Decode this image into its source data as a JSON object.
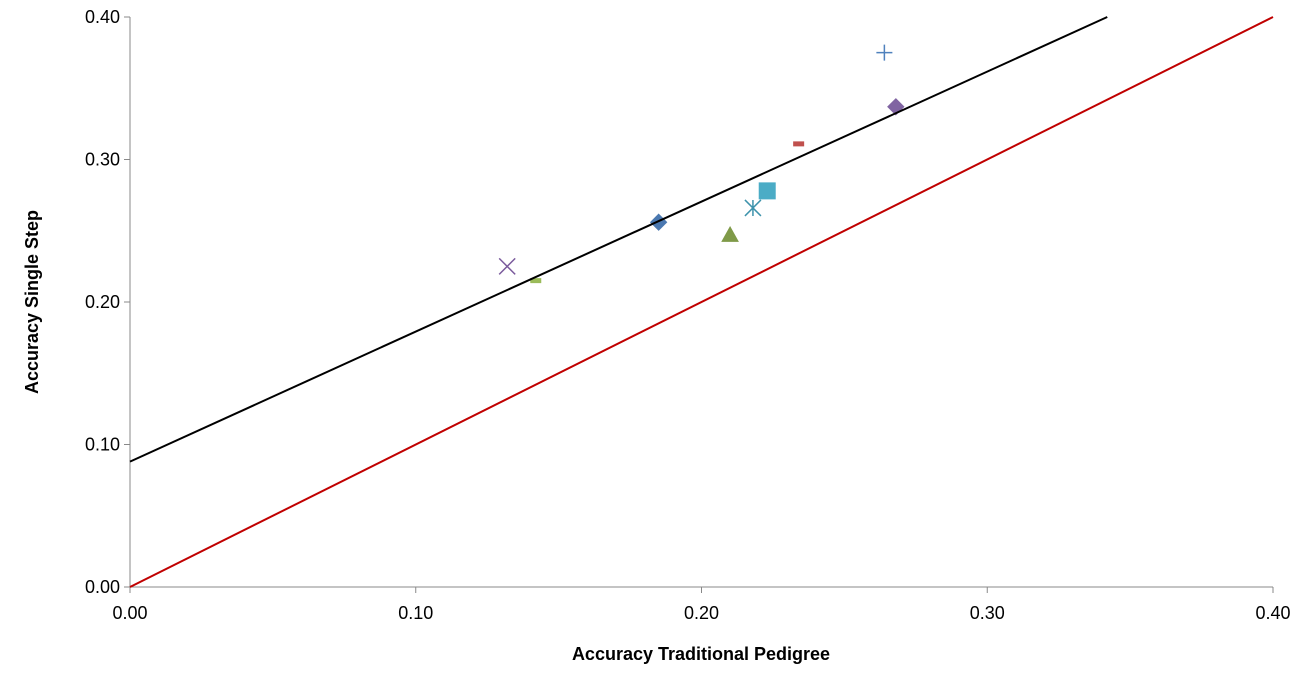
{
  "chart_data": {
    "type": "scatter",
    "xlabel": "Accuracy Traditional Pedigree",
    "ylabel": "Accuracy Single Step",
    "xlim": [
      0,
      0.4
    ],
    "ylim": [
      0,
      0.4
    ],
    "xticks": [
      {
        "value": 0,
        "label": "0.00"
      },
      {
        "value": 0.1,
        "label": "0.10"
      },
      {
        "value": 0.2,
        "label": "0.20"
      },
      {
        "value": 0.3,
        "label": "0.30"
      },
      {
        "value": 0.4,
        "label": "0.40"
      }
    ],
    "yticks": [
      {
        "value": 0,
        "label": "0.00"
      },
      {
        "value": 0.1,
        "label": "0.10"
      },
      {
        "value": 0.2,
        "label": "0.20"
      },
      {
        "value": 0.3,
        "label": "0.30"
      },
      {
        "value": 0.4,
        "label": "0.40"
      }
    ],
    "grid": false,
    "series": [
      {
        "color": "#4a78b0",
        "marker": "diamond",
        "x": [
          0.185
        ],
        "values": [
          0.256
        ]
      },
      {
        "color": "#c0504d",
        "marker": "dash",
        "x": [
          0.234
        ],
        "values": [
          0.311
        ]
      },
      {
        "color": "#7f9a48",
        "marker": "triangle",
        "x": [
          0.21
        ],
        "values": [
          0.247
        ]
      },
      {
        "color": "#7a5a9c",
        "marker": "cross",
        "x": [
          0.132
        ],
        "values": [
          0.225
        ]
      },
      {
        "color": "#3e93ac",
        "marker": "asterisk",
        "x": [
          0.218
        ],
        "values": [
          0.266
        ]
      },
      {
        "color": "#4bacc6",
        "marker": "square",
        "x": [
          0.223
        ],
        "values": [
          0.278
        ]
      },
      {
        "color": "#4f81bd",
        "marker": "plus",
        "x": [
          0.264
        ],
        "values": [
          0.375
        ]
      },
      {
        "color": "#8064a2",
        "marker": "diamond",
        "x": [
          0.268
        ],
        "values": [
          0.337
        ]
      },
      {
        "color": "#9bbb59",
        "marker": "dash",
        "x": [
          0.142
        ],
        "values": [
          0.215
        ]
      },
      {
        "color": "#000000",
        "marker": "line",
        "x": [
          0,
          0.342
        ],
        "values": [
          0.088,
          0.4
        ]
      },
      {
        "color": "#c00000",
        "marker": "line",
        "x": [
          0,
          0.4
        ],
        "values": [
          0,
          0.4
        ]
      }
    ]
  }
}
